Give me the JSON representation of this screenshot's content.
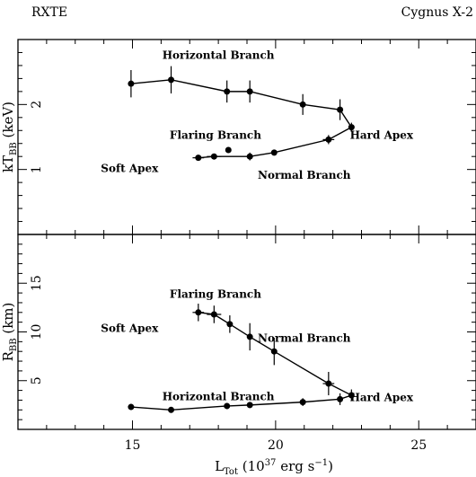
{
  "header": {
    "left": "RXTE",
    "right": "Cygnus X-2"
  },
  "xaxis": {
    "label_main": "L",
    "label_sub": "Tot",
    "label_unit_pre": " (10",
    "label_unit_exp": "37",
    "label_unit_mid": " erg s",
    "label_unit_exp2": "−1",
    "label_unit_post": ")"
  },
  "chart_data": [
    {
      "type": "scatter",
      "panel": "top",
      "ylabel_main": "kT",
      "ylabel_sub": "BB",
      "ylabel_unit": " (keV)",
      "xlim": [
        11.0,
        27.0
      ],
      "ylim": [
        0.0,
        3.0
      ],
      "yticks": [
        1,
        2
      ],
      "annotations": [
        {
          "text": "Horizontal Branch",
          "x": 18.0,
          "y": 2.7
        },
        {
          "text": "Flaring Branch",
          "x": 17.9,
          "y": 1.47
        },
        {
          "text": "Hard Apex",
          "x": 23.7,
          "y": 1.47
        },
        {
          "text": "Soft Apex",
          "x": 14.9,
          "y": 0.96
        },
        {
          "text": "Normal Branch",
          "x": 21.0,
          "y": 0.86
        }
      ],
      "series": [
        {
          "x": [
            14.95,
            16.35,
            18.3,
            19.1,
            20.95,
            22.25,
            22.65,
            21.85,
            19.95,
            19.1,
            17.85,
            17.3
          ],
          "y": [
            2.32,
            2.38,
            2.2,
            2.2,
            2.0,
            1.92,
            1.65,
            1.46,
            1.26,
            1.2,
            1.2,
            1.18
          ],
          "yerr": [
            0.21,
            0.21,
            0.17,
            0.17,
            0.16,
            0.16,
            0.07,
            0.07,
            0.04,
            0.06,
            0.04,
            0.03
          ],
          "xerr": [
            0,
            0,
            0,
            0,
            0,
            0,
            0.1,
            0.2,
            0,
            0,
            0.25,
            0.2
          ]
        },
        {
          "x": [
            18.35
          ],
          "y": [
            1.3
          ],
          "yerr": [
            0.04
          ],
          "xerr": [
            0
          ]
        }
      ]
    },
    {
      "type": "scatter",
      "panel": "bottom",
      "ylabel_main": "R",
      "ylabel_sub": "BB",
      "ylabel_unit": " (km)",
      "xlim": [
        11.0,
        27.0
      ],
      "ylim": [
        0.0,
        20.0
      ],
      "yticks": [
        5,
        10,
        15
      ],
      "annotations": [
        {
          "text": "Flaring Branch",
          "x": 17.9,
          "y": 13.5
        },
        {
          "text": "Soft Apex",
          "x": 14.9,
          "y": 10.0
        },
        {
          "text": "Normal Branch",
          "x": 21.0,
          "y": 9.0
        },
        {
          "text": "Horizontal Branch",
          "x": 18.0,
          "y": 3.0
        },
        {
          "text": "Hard Apex",
          "x": 23.7,
          "y": 2.9
        }
      ],
      "series": [
        {
          "x": [
            14.95,
            16.35,
            18.3,
            19.1,
            20.95,
            22.25,
            22.65,
            21.85,
            19.95,
            19.1,
            18.4,
            17.85,
            17.3
          ],
          "y": [
            2.3,
            2.0,
            2.4,
            2.5,
            2.8,
            3.1,
            3.5,
            4.7,
            8.0,
            9.5,
            10.8,
            11.8,
            12.0
          ],
          "yerr": [
            0.3,
            0.3,
            0.3,
            0.3,
            0.4,
            0.6,
            0.6,
            1.2,
            1.4,
            1.4,
            0.9,
            0.9,
            0.9
          ],
          "xerr": [
            0,
            0,
            0,
            0,
            0,
            0,
            0.1,
            0.2,
            0,
            0,
            0,
            0.25,
            0.2
          ]
        }
      ]
    }
  ],
  "xticks": [
    15,
    20,
    25
  ]
}
